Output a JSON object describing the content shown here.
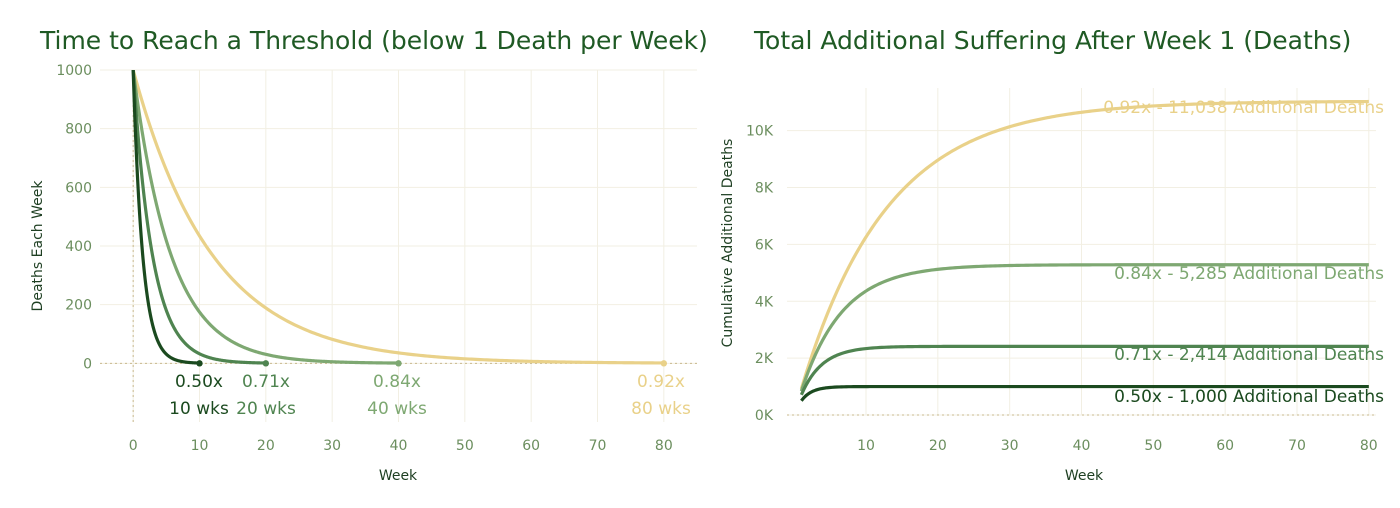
{
  "colors": {
    "s050": "#1b4a1f",
    "s071": "#4f8450",
    "s084": "#7ea872",
    "s092": "#e9d189",
    "tick": "#6b8e5e",
    "grid": "#f2efe3",
    "zero": "#c8b98c"
  },
  "chart_data": [
    {
      "type": "line",
      "title": "Time to Reach a Threshold (below 1 Death per Week)",
      "xlabel": "Week",
      "ylabel": "Deaths Each Week",
      "xlim": [
        -5,
        85
      ],
      "ylim": [
        -200,
        1000
      ],
      "x_ticks": [
        "0",
        "10",
        "20",
        "30",
        "40",
        "50",
        "60",
        "70",
        "80"
      ],
      "y_ticks": [
        "1000",
        "800",
        "600",
        "400",
        "200",
        "0"
      ],
      "grid": true,
      "series": [
        {
          "key": "s050",
          "ratio": 0.5,
          "start": 1000,
          "end_week": 10
        },
        {
          "key": "s071",
          "ratio": 0.71,
          "start": 1000,
          "end_week": 20
        },
        {
          "key": "s084",
          "ratio": 0.84,
          "start": 1000,
          "end_week": 40
        },
        {
          "key": "s092",
          "ratio": 0.92,
          "start": 1000,
          "end_week": 80
        }
      ],
      "markers": [
        {
          "key": "s050",
          "rate": "0.50x",
          "weeks": "10 wks",
          "week": 10
        },
        {
          "key": "s071",
          "rate": "0.71x",
          "weeks": "20 wks",
          "week": 20
        },
        {
          "key": "s084",
          "rate": "0.84x",
          "weeks": "40 wks",
          "week": 40
        },
        {
          "key": "s092",
          "rate": "0.92x",
          "weeks": "80 wks",
          "week": 80
        }
      ]
    },
    {
      "type": "line",
      "title": "Total Additional Suffering After Week 1 (Deaths)",
      "xlabel": "Week",
      "ylabel": "Cumulative Additional Deaths",
      "xlim": [
        -1,
        81
      ],
      "ylim": [
        0,
        11500
      ],
      "x_ticks": [
        "10",
        "20",
        "30",
        "40",
        "50",
        "60",
        "70",
        "80"
      ],
      "y_ticks": [
        "10K",
        "8K",
        "6K",
        "4K",
        "2K",
        "0K"
      ],
      "grid": true,
      "series": [
        {
          "key": "s050",
          "ratio": 0.5,
          "start": 500,
          "final": 1000,
          "label": "0.50x - 1,000 Additional Deaths"
        },
        {
          "key": "s071",
          "ratio": 0.71,
          "start": 710,
          "final": 2414,
          "label": "0.71x - 2,414 Additional Deaths"
        },
        {
          "key": "s084",
          "ratio": 0.84,
          "start": 840,
          "final": 5285,
          "label": "0.84x - 5,285 Additional Deaths"
        },
        {
          "key": "s092",
          "ratio": 0.92,
          "start": 920,
          "final": 11038,
          "label": "0.92x - 11,038 Additional Deaths"
        }
      ]
    }
  ]
}
